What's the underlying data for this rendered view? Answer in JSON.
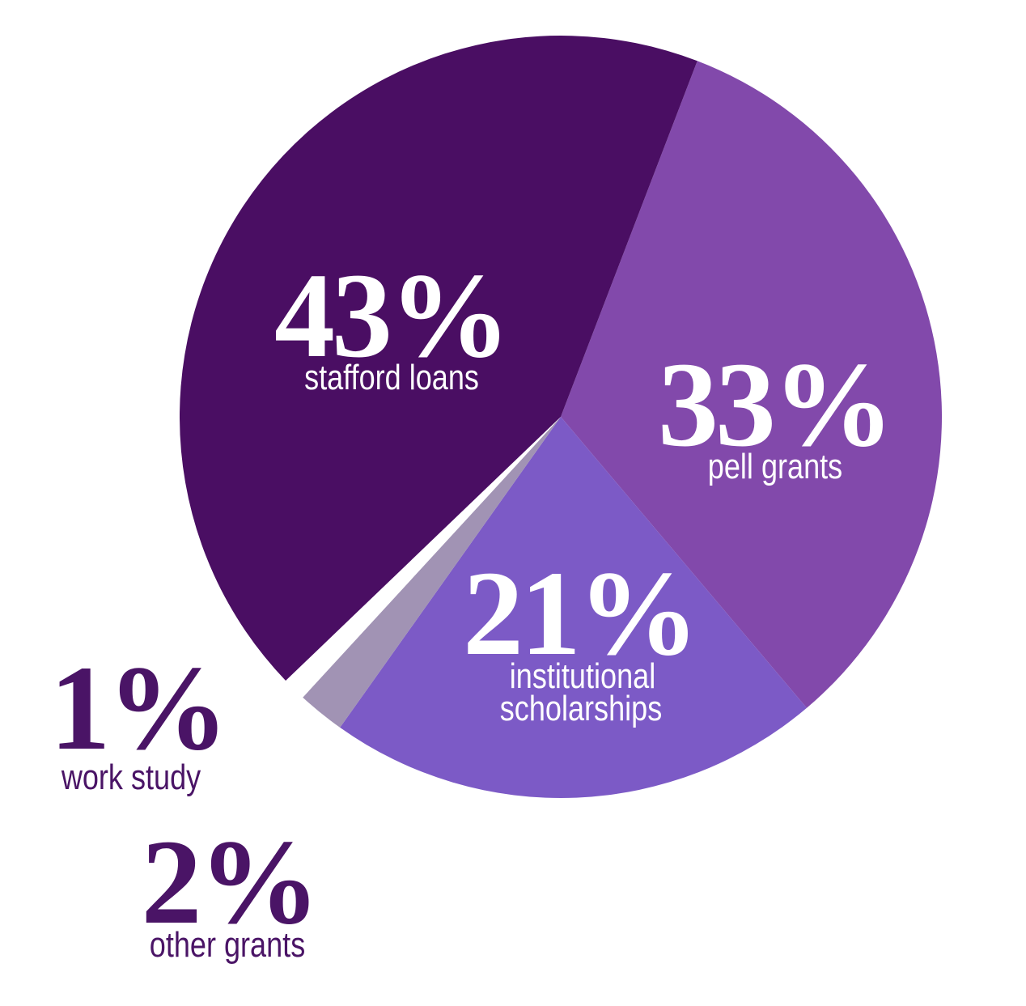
{
  "chart_data": {
    "type": "pie",
    "start_angle_deg": 21,
    "direction": "clockwise",
    "slices": [
      {
        "label": "pell grants",
        "value": 33,
        "value_label": "33%",
        "color": "#8249ab",
        "text_color": "#ffffff"
      },
      {
        "label_lines": [
          "institutional",
          "scholarships"
        ],
        "label": "institutional scholarships",
        "value": 21,
        "value_label": "21%",
        "color": "#7c5ac6",
        "text_color": "#ffffff"
      },
      {
        "label": "other grants",
        "value": 2,
        "value_label": "2%",
        "color": "#a193b4",
        "text_color": "#4a1466"
      },
      {
        "label": "work study",
        "value": 1,
        "value_label": "1%",
        "color": "#ffffff",
        "text_color": "#4a1466"
      },
      {
        "label": "stafford loans",
        "value": 43,
        "value_label": "43%",
        "color": "#4a0e63",
        "text_color": "#ffffff"
      }
    ]
  }
}
